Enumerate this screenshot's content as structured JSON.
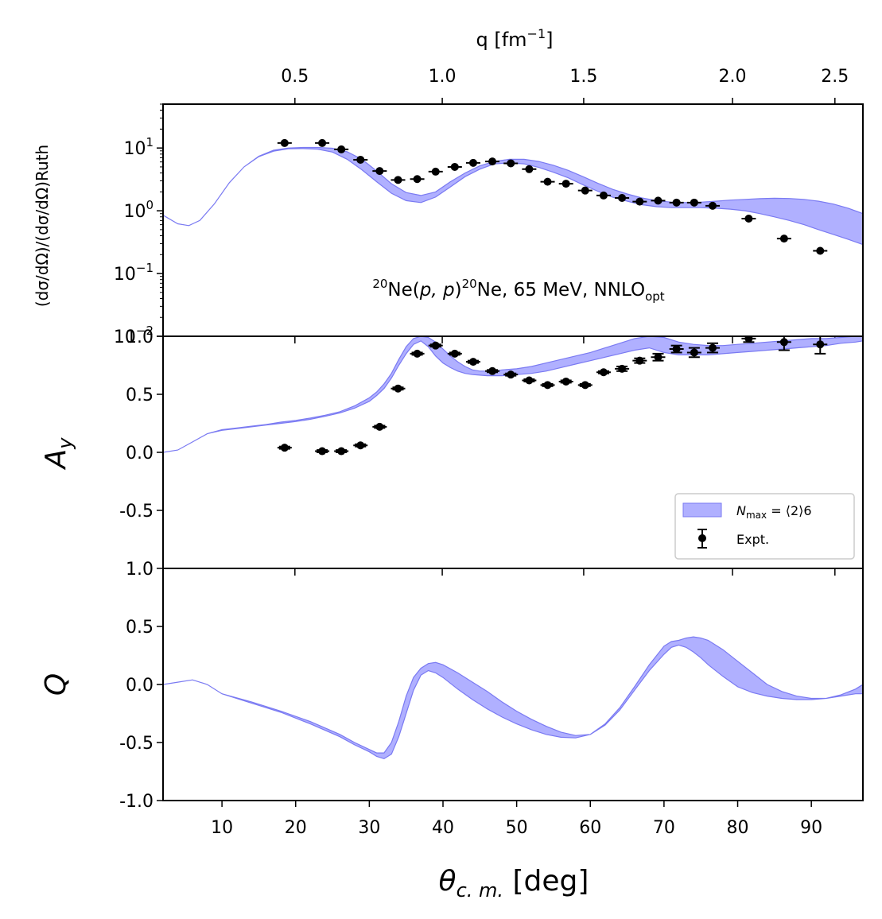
{
  "chart_data": {
    "type": "multi-panel line+scatter",
    "x_axis": {
      "label_sym": "θ",
      "label_sub": "c. m.",
      "label_unit": " [deg]",
      "range": [
        2,
        97
      ],
      "ticks": [
        10,
        20,
        30,
        40,
        50,
        60,
        70,
        80,
        90
      ],
      "tick_labels": [
        "10",
        "20",
        "30",
        "40",
        "50",
        "60",
        "70",
        "80",
        "90"
      ]
    },
    "top_axis": {
      "label": "q [fm",
      "label_sup": "−1",
      "label_end": "]",
      "ticks": [
        {
          "q": 0.5,
          "theta": 19.9,
          "label": "0.5"
        },
        {
          "q": 1.0,
          "theta": 39.9,
          "label": "1.0"
        },
        {
          "q": 1.5,
          "theta": 59.1,
          "label": "1.5"
        },
        {
          "q": 2.0,
          "theta": 79.3,
          "label": "2.0"
        },
        {
          "q": 2.5,
          "theta": 93.2,
          "label": "2.5"
        }
      ]
    },
    "legend": {
      "band": "N",
      "band_sub": "max",
      "band_rest": " = ⟨2⟩6",
      "points": "Expt.",
      "location": "lower right of middle panel"
    },
    "colors": {
      "band_fill": "#b0b0ff",
      "band_edge": "#7a7af2",
      "points": "#000000"
    },
    "panels": [
      {
        "id": "cross-section",
        "ylabel": "(dσ/dΩ)/(dσ/dΩ)Ruth",
        "yscale": "log",
        "ylim": [
          0.01,
          50
        ],
        "ytick_labels": [
          {
            "value": 0.1,
            "base": "10",
            "exp": "−1"
          },
          {
            "value": 1,
            "base": "10",
            "exp": "0"
          },
          {
            "value": 10,
            "base": "10",
            "exp": "1"
          },
          {
            "value": 0.01,
            "base": "10",
            "exp": "−2"
          }
        ],
        "annotation": {
          "pre_sup": "20",
          "t1": "Ne(",
          "t2": "p, p",
          "t3": ")",
          "mid_sup": "20",
          "t4": "Ne, 65 MeV, NNLO",
          "sub": "opt"
        },
        "band_x": [
          2,
          4,
          5.5,
          7,
          9,
          11,
          13,
          15,
          17,
          19,
          21,
          23,
          25,
          27,
          29,
          31,
          33,
          35,
          37,
          39,
          41,
          43,
          45,
          47,
          49,
          51,
          53,
          55,
          57,
          59,
          61,
          63,
          65,
          67,
          69,
          71,
          73,
          75,
          77,
          79,
          81,
          83,
          85,
          87,
          89,
          91,
          93,
          95,
          97
        ],
        "band_lo": [
          0.85,
          0.62,
          0.58,
          0.7,
          1.3,
          2.8,
          5.0,
          7.3,
          8.9,
          9.7,
          9.8,
          9.6,
          8.6,
          6.6,
          4.5,
          2.9,
          1.9,
          1.45,
          1.35,
          1.65,
          2.4,
          3.5,
          4.6,
          5.6,
          5.8,
          5.6,
          4.9,
          4.1,
          3.35,
          2.6,
          2.05,
          1.65,
          1.42,
          1.25,
          1.16,
          1.12,
          1.12,
          1.12,
          1.1,
          1.06,
          1.0,
          0.9,
          0.8,
          0.7,
          0.6,
          0.5,
          0.42,
          0.35,
          0.29
        ],
        "band_hi": [
          0.85,
          0.62,
          0.58,
          0.7,
          1.3,
          2.8,
          5.0,
          7.4,
          9.2,
          10.0,
          10.2,
          10.2,
          9.9,
          8.7,
          6.6,
          4.3,
          2.7,
          1.95,
          1.75,
          2.0,
          2.9,
          4.0,
          5.2,
          6.1,
          6.6,
          6.6,
          6.1,
          5.3,
          4.4,
          3.5,
          2.75,
          2.2,
          1.85,
          1.6,
          1.45,
          1.37,
          1.35,
          1.37,
          1.42,
          1.48,
          1.52,
          1.56,
          1.58,
          1.57,
          1.52,
          1.42,
          1.28,
          1.1,
          0.9
        ],
        "expt_x": [
          18.5,
          23.6,
          26.2,
          28.8,
          31.4,
          33.9,
          36.5,
          39.0,
          41.6,
          44.1,
          46.7,
          49.2,
          51.7,
          54.2,
          56.7,
          59.3,
          61.8,
          64.3,
          66.7,
          69.2,
          71.7,
          74.1,
          76.6,
          81.5,
          86.3,
          91.2
        ],
        "expt_y": [
          12.0,
          12.0,
          9.5,
          6.5,
          4.3,
          3.1,
          3.2,
          4.2,
          5.0,
          5.8,
          6.1,
          5.7,
          4.6,
          2.9,
          2.7,
          2.1,
          1.75,
          1.6,
          1.4,
          1.45,
          1.35,
          1.35,
          1.2,
          0.75,
          0.36,
          0.23
        ]
      },
      {
        "id": "analyzing-power",
        "ylabel": "A",
        "ylabel_sub": "y",
        "ylim": [
          -1.0,
          1.0
        ],
        "ytick_labels": [
          {
            "value": -0.5,
            "label": "-0.5"
          },
          {
            "value": 0.0,
            "label": "0.0"
          },
          {
            "value": 0.5,
            "label": "0.5"
          },
          {
            "value": 1.0,
            "label": "1.0"
          }
        ],
        "band_x": [
          2,
          4,
          6,
          8,
          10,
          12,
          14,
          16,
          18,
          20,
          22,
          24,
          26,
          28,
          30,
          31,
          32,
          33,
          34,
          35,
          36,
          37,
          38,
          39,
          40,
          41,
          42,
          43,
          44,
          45,
          46,
          47,
          48,
          50,
          52,
          54,
          56,
          58,
          60,
          62,
          64,
          66,
          68,
          70,
          72,
          74,
          76,
          78,
          80,
          82,
          84,
          86,
          88,
          90,
          92,
          94,
          96,
          97
        ],
        "band_lo": [
          0.0,
          0.02,
          0.09,
          0.16,
          0.19,
          0.205,
          0.22,
          0.235,
          0.25,
          0.265,
          0.285,
          0.31,
          0.34,
          0.38,
          0.44,
          0.49,
          0.55,
          0.64,
          0.75,
          0.85,
          0.93,
          0.96,
          0.91,
          0.83,
          0.77,
          0.73,
          0.7,
          0.68,
          0.67,
          0.665,
          0.66,
          0.66,
          0.66,
          0.67,
          0.68,
          0.7,
          0.73,
          0.76,
          0.79,
          0.82,
          0.85,
          0.88,
          0.9,
          0.86,
          0.84,
          0.84,
          0.84,
          0.85,
          0.86,
          0.87,
          0.88,
          0.89,
          0.9,
          0.91,
          0.92,
          0.94,
          0.95,
          0.96
        ],
        "band_hi": [
          0.0,
          0.02,
          0.09,
          0.16,
          0.195,
          0.21,
          0.225,
          0.24,
          0.26,
          0.275,
          0.295,
          0.32,
          0.35,
          0.4,
          0.47,
          0.52,
          0.59,
          0.68,
          0.8,
          0.91,
          0.98,
          1.0,
          0.99,
          0.95,
          0.89,
          0.83,
          0.78,
          0.74,
          0.71,
          0.7,
          0.7,
          0.7,
          0.71,
          0.72,
          0.74,
          0.77,
          0.8,
          0.83,
          0.86,
          0.9,
          0.94,
          0.98,
          1.0,
          0.99,
          0.95,
          0.93,
          0.92,
          0.92,
          0.93,
          0.94,
          0.95,
          0.96,
          0.97,
          0.98,
          0.98,
          0.99,
          1.0,
          1.0
        ],
        "expt_x": [
          18.5,
          23.6,
          26.2,
          28.8,
          31.4,
          33.9,
          36.5,
          39.0,
          41.6,
          44.1,
          46.7,
          49.2,
          51.7,
          54.2,
          56.7,
          59.3,
          61.8,
          64.3,
          66.7,
          69.2,
          71.7,
          74.1,
          76.6,
          81.5,
          86.3,
          91.2
        ],
        "expt_y": [
          0.04,
          0.01,
          0.01,
          0.06,
          0.22,
          0.55,
          0.85,
          0.92,
          0.85,
          0.78,
          0.7,
          0.67,
          0.62,
          0.58,
          0.61,
          0.58,
          0.69,
          0.72,
          0.79,
          0.82,
          0.89,
          0.86,
          0.9,
          0.98,
          0.95,
          0.93
        ],
        "expt_err": [
          0.01,
          0.01,
          0.01,
          0.01,
          0.01,
          0.01,
          0.01,
          0.01,
          0.01,
          0.01,
          0.01,
          0.01,
          0.01,
          0.01,
          0.01,
          0.01,
          0.01,
          0.02,
          0.02,
          0.03,
          0.03,
          0.04,
          0.04,
          0.03,
          0.07,
          0.08
        ]
      },
      {
        "id": "spin-rotation",
        "ylabel": "Q",
        "ylim": [
          -1.0,
          1.0
        ],
        "ytick_labels": [
          {
            "value": -1.0,
            "label": "-1.0"
          },
          {
            "value": -0.5,
            "label": "-0.5"
          },
          {
            "value": 0.0,
            "label": "0.0"
          },
          {
            "value": 0.5,
            "label": "0.5"
          },
          {
            "value": 1.0,
            "label": "1.0"
          }
        ],
        "band_x": [
          2,
          4,
          6,
          8,
          10,
          14,
          18,
          22,
          26,
          28,
          30,
          31,
          32,
          33,
          34,
          35,
          36,
          37,
          38,
          39,
          40,
          42,
          44,
          46,
          48,
          50,
          52,
          54,
          56,
          58,
          60,
          62,
          64,
          66,
          68,
          70,
          71,
          72,
          73,
          74,
          75,
          76,
          78,
          80,
          82,
          84,
          86,
          88,
          90,
          92,
          94,
          96,
          97
        ],
        "band_lo": [
          0.0,
          0.02,
          0.04,
          0.0,
          -0.08,
          -0.16,
          -0.24,
          -0.34,
          -0.45,
          -0.52,
          -0.58,
          -0.62,
          -0.64,
          -0.6,
          -0.45,
          -0.25,
          -0.05,
          0.08,
          0.12,
          0.1,
          0.06,
          -0.04,
          -0.13,
          -0.21,
          -0.28,
          -0.34,
          -0.39,
          -0.43,
          -0.455,
          -0.46,
          -0.43,
          -0.35,
          -0.22,
          -0.05,
          0.12,
          0.26,
          0.32,
          0.34,
          0.32,
          0.28,
          0.23,
          0.17,
          0.07,
          -0.02,
          -0.07,
          -0.1,
          -0.12,
          -0.13,
          -0.13,
          -0.12,
          -0.1,
          -0.08,
          -0.08
        ],
        "band_hi": [
          0.0,
          0.02,
          0.04,
          0.0,
          -0.08,
          -0.15,
          -0.23,
          -0.32,
          -0.43,
          -0.5,
          -0.56,
          -0.59,
          -0.59,
          -0.5,
          -0.32,
          -0.1,
          0.06,
          0.14,
          0.18,
          0.19,
          0.17,
          0.1,
          0.02,
          -0.06,
          -0.15,
          -0.23,
          -0.3,
          -0.36,
          -0.41,
          -0.44,
          -0.43,
          -0.34,
          -0.2,
          -0.02,
          0.17,
          0.33,
          0.37,
          0.38,
          0.4,
          0.41,
          0.4,
          0.38,
          0.3,
          0.2,
          0.1,
          0.0,
          -0.06,
          -0.1,
          -0.12,
          -0.12,
          -0.09,
          -0.04,
          0.0
        ]
      }
    ]
  }
}
